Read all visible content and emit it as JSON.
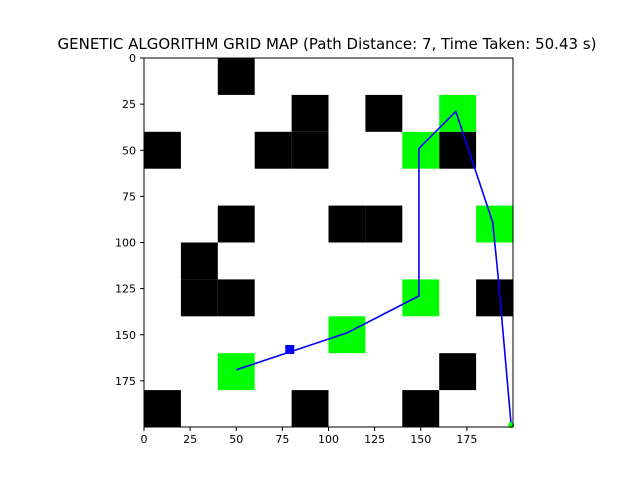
{
  "chart_data": {
    "type": "heatmap",
    "title": "GENETIC ALGORITHM GRID MAP (Path Distance: 7, Time Taken: 50.43 s)",
    "xlabel": "",
    "ylabel": "",
    "xlim": [
      0,
      200
    ],
    "ylim": [
      200,
      0
    ],
    "y_inverted": true,
    "cell_size": 20,
    "x_ticks": [
      0,
      25,
      50,
      75,
      100,
      125,
      150,
      175
    ],
    "y_ticks": [
      0,
      25,
      50,
      75,
      100,
      125,
      150,
      175
    ],
    "grid": false,
    "colors": {
      "obstacle": "#000000",
      "waypoint": "#00ff00",
      "path": "#0000ff",
      "start_marker": "#0000ff",
      "end_marker": "#00ff00",
      "background": "#ffffff"
    },
    "obstacles": [
      [
        40,
        0
      ],
      [
        80,
        20
      ],
      [
        120,
        20
      ],
      [
        160,
        40
      ],
      [
        0,
        40
      ],
      [
        60,
        40
      ],
      [
        80,
        40
      ],
      [
        40,
        80
      ],
      [
        100,
        80
      ],
      [
        120,
        80
      ],
      [
        20,
        100
      ],
      [
        20,
        120
      ],
      [
        40,
        120
      ],
      [
        180,
        120
      ],
      [
        160,
        160
      ],
      [
        0,
        180
      ],
      [
        80,
        180
      ],
      [
        140,
        180
      ]
    ],
    "waypoints": [
      [
        160,
        20
      ],
      [
        140,
        40
      ],
      [
        180,
        80
      ],
      [
        140,
        120
      ],
      [
        100,
        140
      ],
      [
        40,
        160
      ]
    ],
    "path": [
      [
        50,
        169
      ],
      [
        80,
        159
      ],
      [
        110,
        149
      ],
      [
        149,
        129
      ],
      [
        149,
        49
      ],
      [
        169,
        29
      ],
      [
        179,
        59
      ],
      [
        189,
        89
      ],
      [
        192,
        119
      ],
      [
        199,
        199
      ]
    ],
    "start_marker": [
      79,
      158
    ],
    "end_marker": [
      199,
      199
    ]
  }
}
